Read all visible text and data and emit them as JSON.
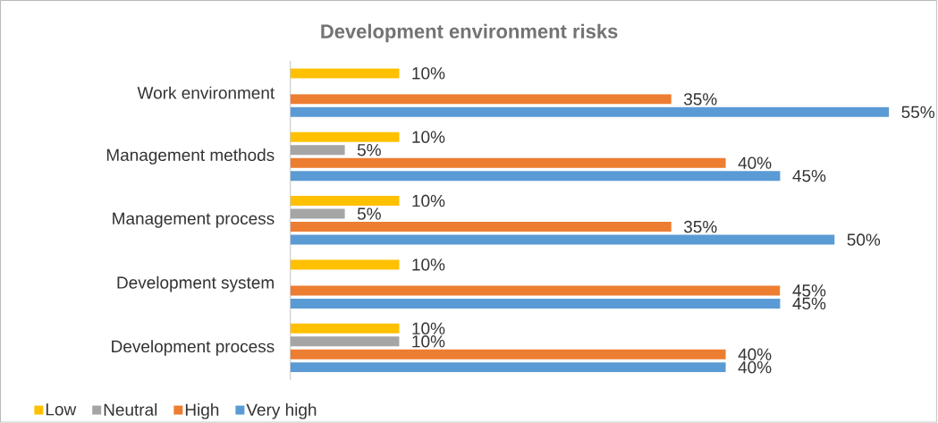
{
  "chart_data": {
    "type": "bar",
    "orientation": "horizontal",
    "title": "Development environment risks",
    "categories": [
      "Work environment",
      "Management methods",
      "Management process",
      "Development system",
      "Development process"
    ],
    "series": [
      {
        "name": "Low",
        "color": "#ffc000",
        "values": [
          10,
          10,
          10,
          10,
          10
        ],
        "value_labels": [
          "10%",
          "10%",
          "10%",
          "10%",
          "10%"
        ]
      },
      {
        "name": "Neutral",
        "color": "#a5a5a5",
        "values": [
          null,
          5,
          5,
          null,
          10
        ],
        "value_labels": [
          null,
          "5%",
          "5%",
          null,
          "10%"
        ]
      },
      {
        "name": "High",
        "color": "#ed7d31",
        "values": [
          35,
          40,
          35,
          45,
          40
        ],
        "value_labels": [
          "35%",
          "40%",
          "35%",
          "45%",
          "40%"
        ]
      },
      {
        "name": "Very high",
        "color": "#5b9bd5",
        "values": [
          55,
          45,
          50,
          45,
          40
        ],
        "value_labels": [
          "55%",
          "45%",
          "50%",
          "45%",
          "40%"
        ]
      }
    ],
    "legend": "bottom"
  }
}
